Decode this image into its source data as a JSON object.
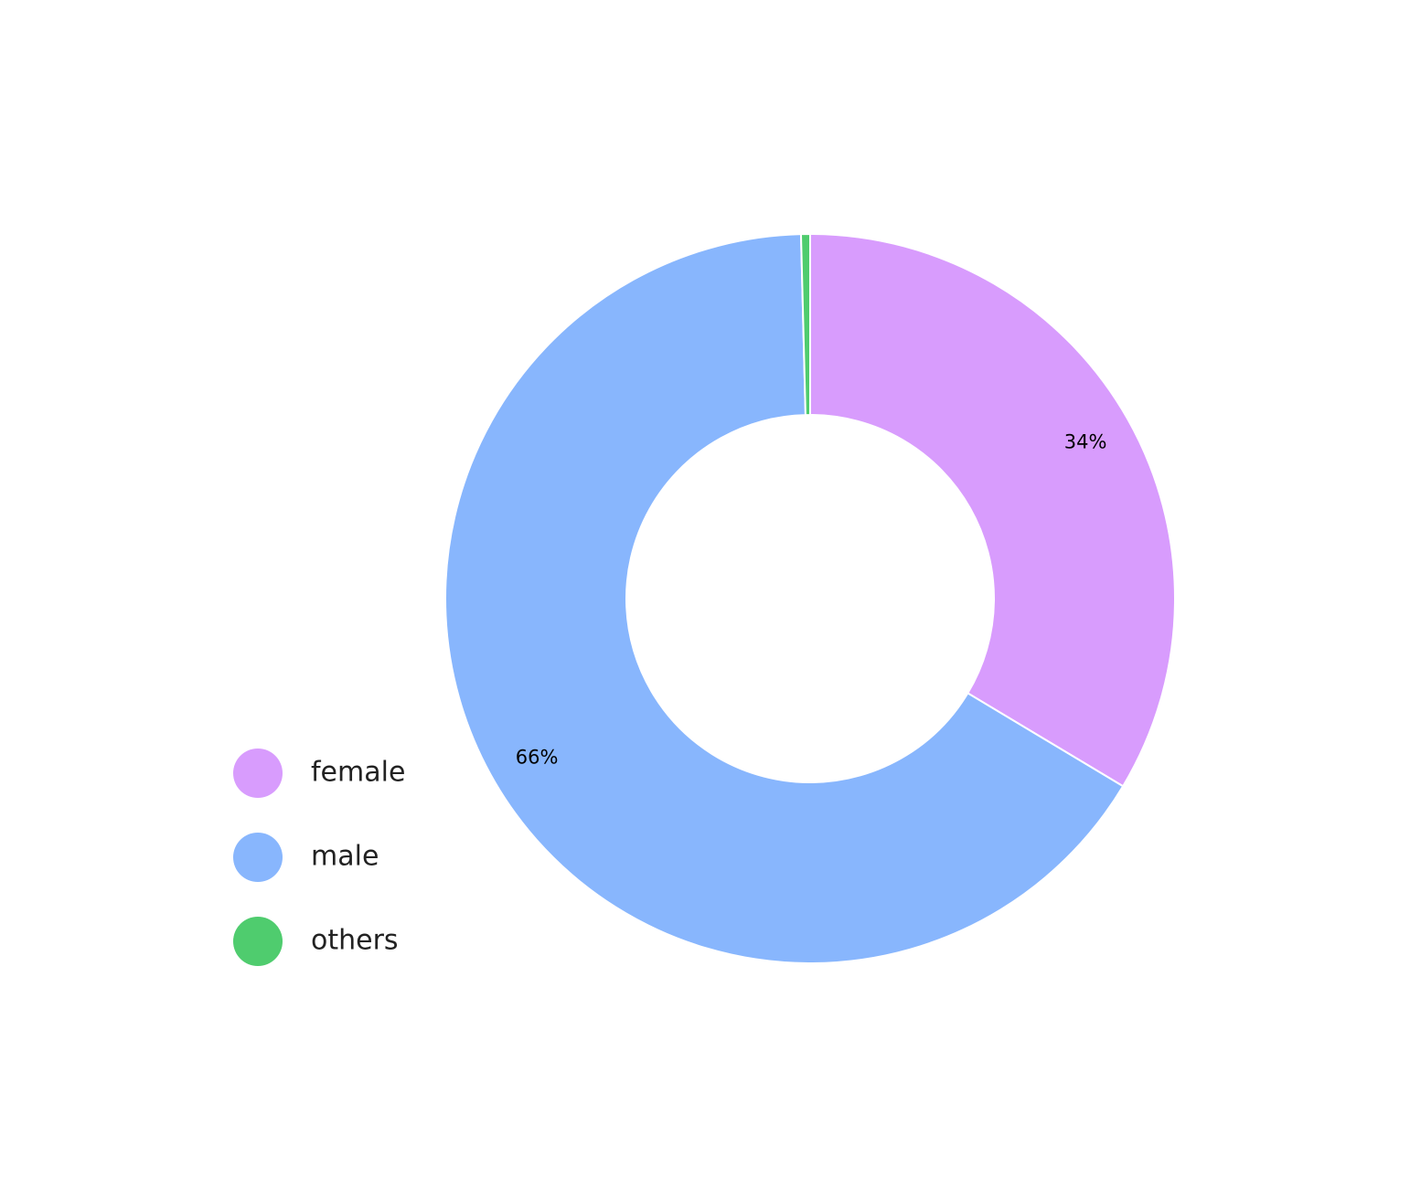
{
  "chart_data": {
    "type": "donut",
    "categories": [
      "female",
      "male",
      "others"
    ],
    "values": [
      33.6,
      66,
      0.4
    ],
    "value_labels": [
      "34%",
      "66%",
      null
    ],
    "colors": [
      "#d89cfd",
      "#88b6fd",
      "#4fcc6e"
    ],
    "legend": "bottom-left"
  }
}
